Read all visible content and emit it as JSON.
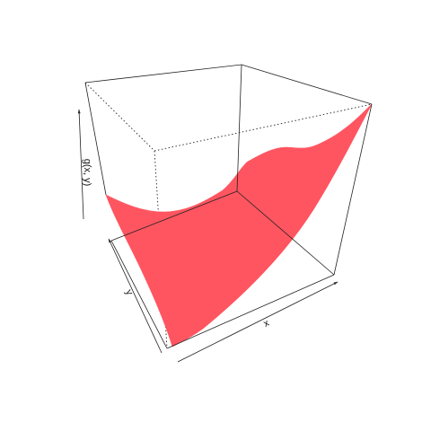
{
  "chart_data": {
    "type": "surface",
    "title": "",
    "xlabel": "x",
    "ylabel": "y",
    "zlabel": "g(x, y)",
    "surface_color": "#ff5560",
    "box_color": "#222222",
    "ticks": "none",
    "projection": "3d-perspective"
  }
}
